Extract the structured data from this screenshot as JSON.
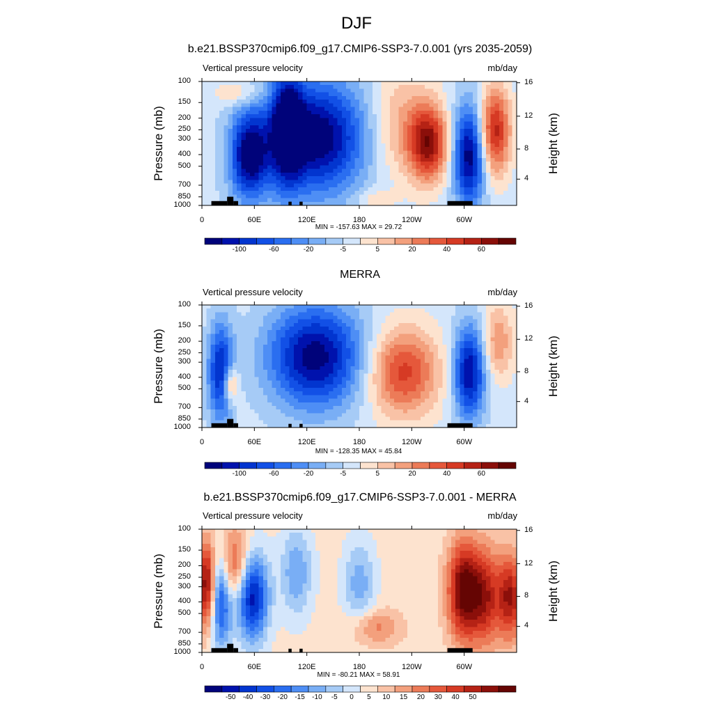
{
  "page": {
    "title": "DJF"
  },
  "chart_data": [
    {
      "type": "heatmap",
      "title": "b.e21.BSSP370cmip6.f09_g17.CMIP6-SSP3-7.0.001 (yrs 2035-2059)",
      "variable": "Vertical pressure velocity",
      "units": "mb/day",
      "ylabel": "Pressure (mb)",
      "ylabel_right": "Height (km)",
      "x_ticks": [
        "0",
        "60E",
        "120E",
        "180",
        "120W",
        "60W"
      ],
      "y_ticks": [
        "100",
        "150",
        "200",
        "250",
        "300",
        "400",
        "500",
        "700",
        "850",
        "1000"
      ],
      "y_right_ticks": [
        "16",
        "12",
        "8",
        "4"
      ],
      "stats": "MIN = -157.63  MAX =  29.72",
      "colorbar_labels": [
        "-100",
        "-60",
        "-20",
        "-5",
        "5",
        "20",
        "40",
        "60"
      ],
      "colormap": [
        "#00037a",
        "#0012ad",
        "#0235cf",
        "#1250e6",
        "#2a6ef0",
        "#4e8ef5",
        "#79aef5",
        "#a6cbf6",
        "#d4e6fb",
        "#fde3cf",
        "#f9c2a6",
        "#f3a07d",
        "#ec7b58",
        "#e5583b",
        "#d63a24",
        "#b52215",
        "#8b0f0a",
        "#650503"
      ],
      "min": -157.63,
      "max": 29.72
    },
    {
      "type": "heatmap",
      "title": "MERRA",
      "variable": "Vertical pressure velocity",
      "units": "mb/day",
      "ylabel": "Pressure (mb)",
      "ylabel_right": "Height (km)",
      "x_ticks": [
        "0",
        "60E",
        "120E",
        "180",
        "120W",
        "60W"
      ],
      "y_ticks": [
        "100",
        "150",
        "200",
        "250",
        "300",
        "400",
        "500",
        "700",
        "850",
        "1000"
      ],
      "y_right_ticks": [
        "16",
        "12",
        "8",
        "4"
      ],
      "stats": "MIN = -128.35  MAX =  45.84",
      "colorbar_labels": [
        "-100",
        "-60",
        "-20",
        "-5",
        "5",
        "20",
        "40",
        "60"
      ],
      "colormap": [
        "#00037a",
        "#0012ad",
        "#0235cf",
        "#1250e6",
        "#2a6ef0",
        "#4e8ef5",
        "#79aef5",
        "#a6cbf6",
        "#d4e6fb",
        "#fde3cf",
        "#f9c2a6",
        "#f3a07d",
        "#ec7b58",
        "#e5583b",
        "#d63a24",
        "#b52215",
        "#8b0f0a",
        "#650503"
      ],
      "min": -128.35,
      "max": 45.84
    },
    {
      "type": "heatmap",
      "title": "b.e21.BSSP370cmip6.f09_g17.CMIP6-SSP3-7.0.001 - MERRA",
      "variable": "Vertical pressure velocity",
      "units": "mb/day",
      "ylabel": "Pressure (mb)",
      "ylabel_right": "Height (km)",
      "x_ticks": [
        "0",
        "60E",
        "120E",
        "180",
        "120W",
        "60W"
      ],
      "y_ticks": [
        "100",
        "150",
        "200",
        "250",
        "300",
        "400",
        "500",
        "700",
        "850",
        "1000"
      ],
      "y_right_ticks": [
        "16",
        "12",
        "8",
        "4"
      ],
      "stats": "MIN = -80.21  MAX =  58.91",
      "colorbar_labels": [
        "-50",
        "-40",
        "-30",
        "-20",
        "-15",
        "-10",
        "-5",
        "0",
        "5",
        "10",
        "15",
        "20",
        "30",
        "40",
        "50"
      ],
      "colormap": [
        "#00037a",
        "#0012ad",
        "#0235cf",
        "#1250e6",
        "#2a6ef0",
        "#4e8ef5",
        "#79aef5",
        "#a6cbf6",
        "#d4e6fb",
        "#fde3cf",
        "#f9c2a6",
        "#f3a07d",
        "#ec7b58",
        "#e5583b",
        "#d63a24",
        "#b52215",
        "#8b0f0a",
        "#650503"
      ],
      "min": -80.21,
      "max": 58.91
    }
  ]
}
